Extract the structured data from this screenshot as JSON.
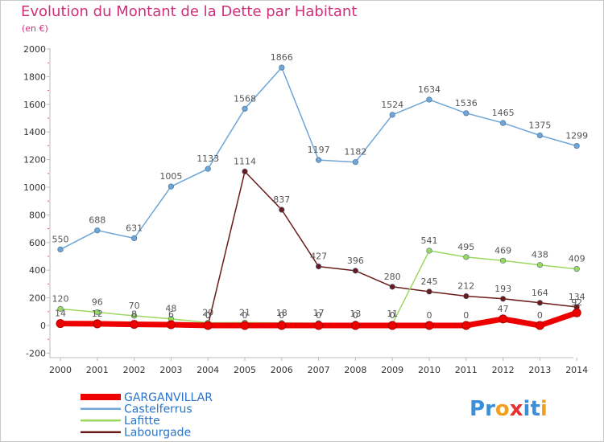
{
  "title": "Evolution du Montant de la Dette par Habitant",
  "unit": "(en €)",
  "brand": {
    "text": "Proxiti",
    "letters": [
      "P",
      "r",
      "o",
      "x",
      "i",
      "t",
      "i"
    ],
    "colors": [
      "#3a8fd8",
      "#3a8fd8",
      "#f0a020",
      "#e83030",
      "#3a8fd8",
      "#3a8fd8",
      "#f0a020"
    ]
  },
  "chart_data": {
    "type": "line",
    "x": [
      "2000",
      "2001",
      "2002",
      "2003",
      "2004",
      "2005",
      "2006",
      "2007",
      "2008",
      "2009",
      "2010",
      "2011",
      "2012",
      "2013",
      "2014"
    ],
    "ylim": [
      -200,
      2000
    ],
    "yticks": [
      -200,
      0,
      200,
      400,
      600,
      800,
      1000,
      1200,
      1400,
      1600,
      1800,
      2000
    ],
    "grid": false,
    "legend_position": "bottom-left",
    "series": [
      {
        "name": "Labourgade",
        "color": "#6b1a1a",
        "width": 1.5,
        "values": [
          null,
          null,
          null,
          null,
          0,
          1114,
          837,
          427,
          396,
          280,
          245,
          212,
          193,
          164,
          134
        ],
        "labels": [
          "",
          "",
          "",
          "",
          "0",
          "1114",
          "837",
          "427",
          "396",
          "280",
          "245",
          "212",
          "193",
          "164",
          "134"
        ]
      },
      {
        "name": "Lafitte",
        "color": "#9ad860",
        "width": 1.5,
        "values": [
          120,
          96,
          70,
          48,
          20,
          21,
          18,
          17,
          13,
          11,
          541,
          495,
          469,
          438,
          409
        ],
        "labels": [
          "120",
          "96",
          "70",
          "48",
          "20",
          "21",
          "18",
          "17",
          "13",
          "11",
          "541",
          "495",
          "469",
          "438",
          "409"
        ]
      },
      {
        "name": "Castelferrus",
        "color": "#6ea6d8",
        "width": 1.5,
        "values": [
          550,
          688,
          631,
          1005,
          1133,
          1568,
          1866,
          1197,
          1182,
          1524,
          1634,
          1536,
          1465,
          1375,
          1299
        ],
        "labels": [
          "550",
          "688",
          "631",
          "1005",
          "1133",
          "1568",
          "1866",
          "1197",
          "1182",
          "1524",
          "1634",
          "1536",
          "1465",
          "1375",
          "1299"
        ]
      },
      {
        "name": "GARGANVILLAR",
        "color": "#ee0000",
        "width": 7,
        "values": [
          14,
          12,
          8,
          6,
          0,
          0,
          0,
          0,
          0,
          0,
          0,
          0,
          47,
          0,
          92
        ],
        "labels": [
          "14",
          "12",
          "8",
          "6",
          "0",
          "0",
          "0",
          "0",
          "0",
          "0",
          "0",
          "0",
          "47",
          "0",
          "92"
        ]
      }
    ],
    "legend_order": [
      "GARGANVILLAR",
      "Castelferrus",
      "Lafitte",
      "Labourgade"
    ]
  }
}
